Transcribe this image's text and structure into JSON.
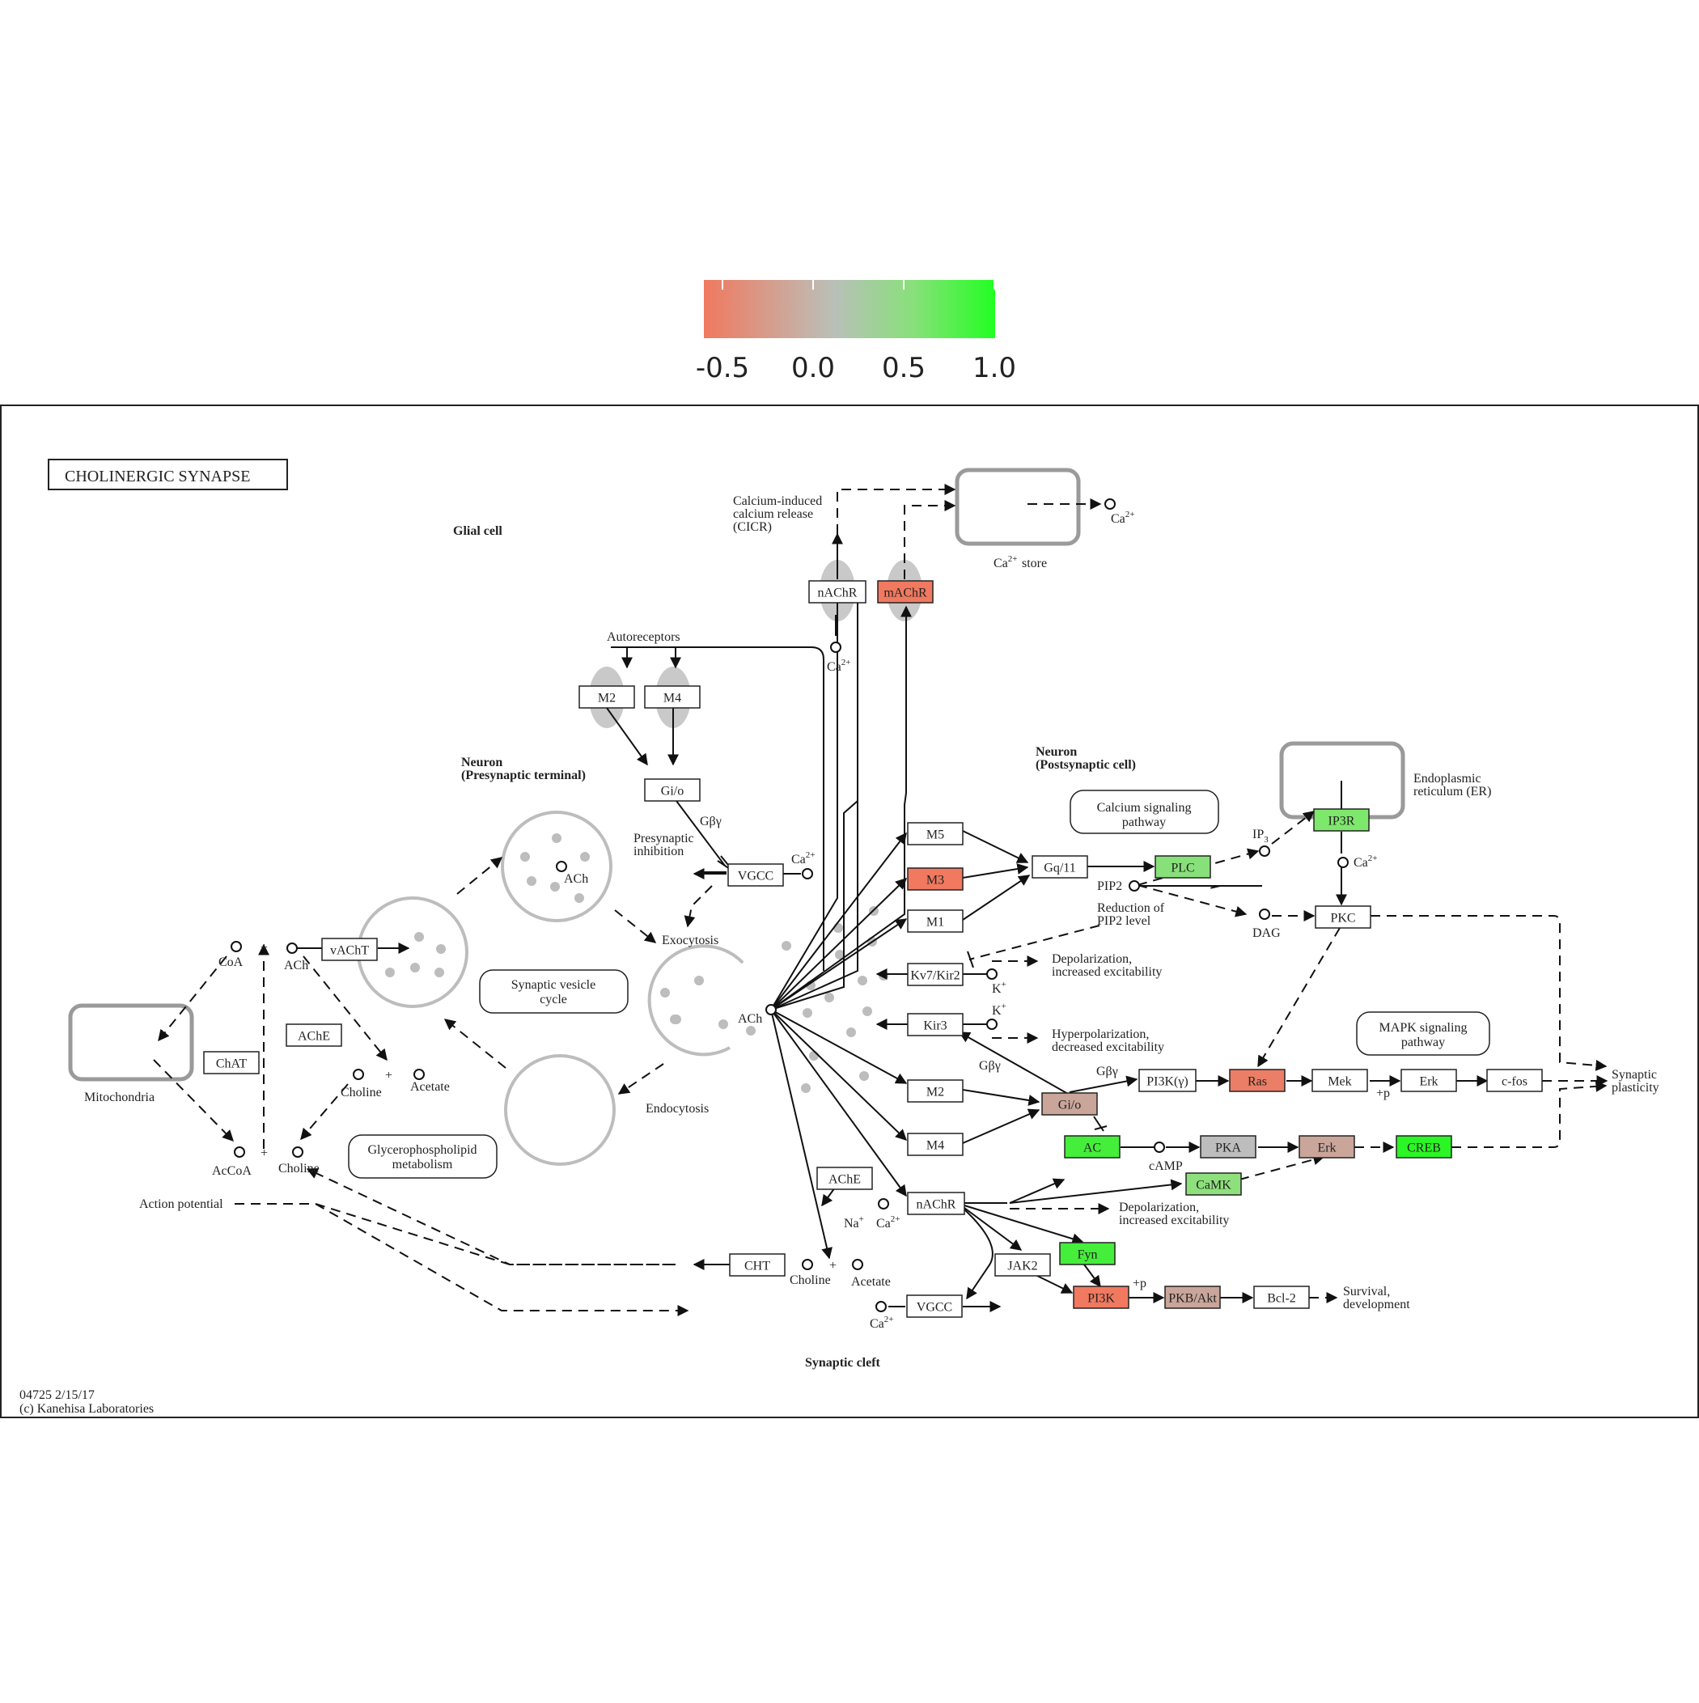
{
  "color_scale": {
    "ticks": [
      "-0.5",
      "0.0",
      "0.5",
      "1.0"
    ],
    "stops": [
      "#f0795f",
      "#c4b4aa",
      "#b8c0b8",
      "#88e07a",
      "#22ff22"
    ]
  },
  "diagram": {
    "title": "CHOLINERGIC  SYNAPSE",
    "footer_id": "04725 2/15/17",
    "footer_copy": "(c) Kanehisa Laboratories",
    "regions": {
      "glial": "Glial cell",
      "pre_1": "Neuron",
      "pre_2": "(Presynaptic terminal)",
      "post_1": "Neuron",
      "post_2": "(Postsynaptic cell)",
      "cleft": "Synaptic cleft"
    },
    "nodes": [
      {
        "id": "nachr_top",
        "label": "nAChR",
        "color": "#ffffff"
      },
      {
        "id": "machr",
        "label": "mAChR",
        "color": "#f0795f"
      },
      {
        "id": "m2_auto",
        "label": "M2",
        "color": "#ffffff"
      },
      {
        "id": "m4_auto",
        "label": "M4",
        "color": "#ffffff"
      },
      {
        "id": "gio_pre",
        "label": "Gi/o",
        "color": "#ffffff"
      },
      {
        "id": "vgcc_pre",
        "label": "VGCC",
        "color": "#ffffff"
      },
      {
        "id": "vacht",
        "label": "vAChT",
        "color": "#ffffff"
      },
      {
        "id": "ache_pre",
        "label": "AChE",
        "color": "#ffffff"
      },
      {
        "id": "chat",
        "label": "ChAT",
        "color": "#ffffff"
      },
      {
        "id": "m5",
        "label": "M5",
        "color": "#ffffff"
      },
      {
        "id": "m3",
        "label": "M3",
        "color": "#f0795f"
      },
      {
        "id": "m1",
        "label": "M1",
        "color": "#ffffff"
      },
      {
        "id": "gq11",
        "label": "Gq/11",
        "color": "#ffffff"
      },
      {
        "id": "plc",
        "label": "PLC",
        "color": "#88e07a"
      },
      {
        "id": "ip3r",
        "label": "IP3R",
        "color": "#7ee86c"
      },
      {
        "id": "pkc",
        "label": "PKC",
        "color": "#ffffff"
      },
      {
        "id": "kv7",
        "label": "Kv7/Kir2",
        "color": "#ffffff"
      },
      {
        "id": "kir3",
        "label": "Kir3",
        "color": "#ffffff"
      },
      {
        "id": "m2_post",
        "label": "M2",
        "color": "#ffffff"
      },
      {
        "id": "m4_post",
        "label": "M4",
        "color": "#ffffff"
      },
      {
        "id": "gio_post",
        "label": "Gi/o",
        "color": "#caa59a"
      },
      {
        "id": "pi3kg",
        "label": "PI3K(γ)",
        "color": "#ffffff"
      },
      {
        "id": "ras",
        "label": "Ras",
        "color": "#eb7e66"
      },
      {
        "id": "mek",
        "label": "Mek",
        "color": "#ffffff"
      },
      {
        "id": "erk1",
        "label": "Erk",
        "color": "#ffffff"
      },
      {
        "id": "cfos",
        "label": "c-fos",
        "color": "#ffffff"
      },
      {
        "id": "ac",
        "label": "AC",
        "color": "#45ee3a"
      },
      {
        "id": "pka",
        "label": "PKA",
        "color": "#bdbdbd"
      },
      {
        "id": "erk2",
        "label": "Erk",
        "color": "#caa59a"
      },
      {
        "id": "creb",
        "label": "CREB",
        "color": "#2bf525"
      },
      {
        "id": "camk",
        "label": "CaMK",
        "color": "#8ee07c"
      },
      {
        "id": "ache_post",
        "label": "AChE",
        "color": "#ffffff"
      },
      {
        "id": "nachr_post",
        "label": "nAChR",
        "color": "#ffffff"
      },
      {
        "id": "fyn",
        "label": "Fyn",
        "color": "#45ee3a"
      },
      {
        "id": "jak2",
        "label": "JAK2",
        "color": "#ffffff"
      },
      {
        "id": "pi3k",
        "label": "PI3K",
        "color": "#f0795f"
      },
      {
        "id": "pkbakt",
        "label": "PKB/Akt",
        "color": "#caa59a"
      },
      {
        "id": "bcl2",
        "label": "Bcl-2",
        "color": "#ffffff"
      },
      {
        "id": "cht",
        "label": "CHT",
        "color": "#ffffff"
      },
      {
        "id": "vgcc_post",
        "label": "VGCC",
        "color": "#ffffff"
      }
    ],
    "pathways": [
      {
        "id": "calcium",
        "line1": "Calcium signaling",
        "line2": "pathway"
      },
      {
        "id": "synves",
        "line1": "Synaptic vesicle",
        "line2": "cycle"
      },
      {
        "id": "mapk",
        "line1": "MAPK signaling",
        "line2": "pathway"
      },
      {
        "id": "glycero",
        "line1": "Glycerophospholipid",
        "line2": "metabolism"
      }
    ],
    "labels": [
      {
        "id": "cicr1",
        "text": "Calcium-induced"
      },
      {
        "id": "cicr2",
        "text": "calcium release"
      },
      {
        "id": "cicr3",
        "text": "(CICR)"
      },
      {
        "id": "ca_store",
        "text": "store"
      },
      {
        "id": "autoreceptors",
        "text": "Autoreceptors"
      },
      {
        "id": "gby1",
        "text": "Gβγ"
      },
      {
        "id": "presyn1",
        "text": "Presynaptic"
      },
      {
        "id": "presyn2",
        "text": "inhibition"
      },
      {
        "id": "exocytosis",
        "text": "Exocytosis"
      },
      {
        "id": "endocytosis",
        "text": "Endocytosis"
      },
      {
        "id": "ach_vesicle",
        "text": "ACh"
      },
      {
        "id": "ach_release",
        "text": "ACh"
      },
      {
        "id": "ach_pre",
        "text": "ACh"
      },
      {
        "id": "coa",
        "text": "CoA"
      },
      {
        "id": "acoa",
        "text": "AcCoA"
      },
      {
        "id": "choline1",
        "text": "Choline"
      },
      {
        "id": "acetate1",
        "text": "Acetate"
      },
      {
        "id": "choline2",
        "text": "Choline"
      },
      {
        "id": "choline3",
        "text": "Choline"
      },
      {
        "id": "acetate3",
        "text": "Acetate"
      },
      {
        "id": "mitochondria",
        "text": "Mitochondria"
      },
      {
        "id": "action_potential",
        "text": "Action potential"
      },
      {
        "id": "pip2",
        "text": "PIP2"
      },
      {
        "id": "reduction1",
        "text": "Reduction of"
      },
      {
        "id": "reduction2",
        "text": "PIP2 level"
      },
      {
        "id": "dag",
        "text": "DAG"
      },
      {
        "id": "ip3",
        "text": "IP"
      },
      {
        "id": "er1",
        "text": "Endoplasmic"
      },
      {
        "id": "er2",
        "text": "reticulum (ER)"
      },
      {
        "id": "depol1a",
        "text": "Depolarization,"
      },
      {
        "id": "depol1b",
        "text": "increased excitability"
      },
      {
        "id": "hyper1",
        "text": "Hyperpolarization,"
      },
      {
        "id": "hyper2",
        "text": "decreased excitability"
      },
      {
        "id": "gby2",
        "text": "Gβγ"
      },
      {
        "id": "gby3",
        "text": "Gβγ"
      },
      {
        "id": "camp",
        "text": "cAMP"
      },
      {
        "id": "depol2a",
        "text": "Depolarization,"
      },
      {
        "id": "depol2b",
        "text": "increased excitability"
      },
      {
        "id": "nak",
        "text": "Na"
      },
      {
        "id": "nak_ca",
        "text": "Ca"
      },
      {
        "id": "syn_plast1",
        "text": "Synaptic"
      },
      {
        "id": "syn_plast2",
        "text": "plasticity"
      },
      {
        "id": "survival1",
        "text": "Survival,"
      },
      {
        "id": "survival2",
        "text": "development"
      },
      {
        "id": "plus_p1",
        "text": "+p"
      },
      {
        "id": "plus_p2",
        "text": "+p"
      },
      {
        "id": "k1",
        "text": "K"
      },
      {
        "id": "k2",
        "text": "K"
      }
    ]
  }
}
